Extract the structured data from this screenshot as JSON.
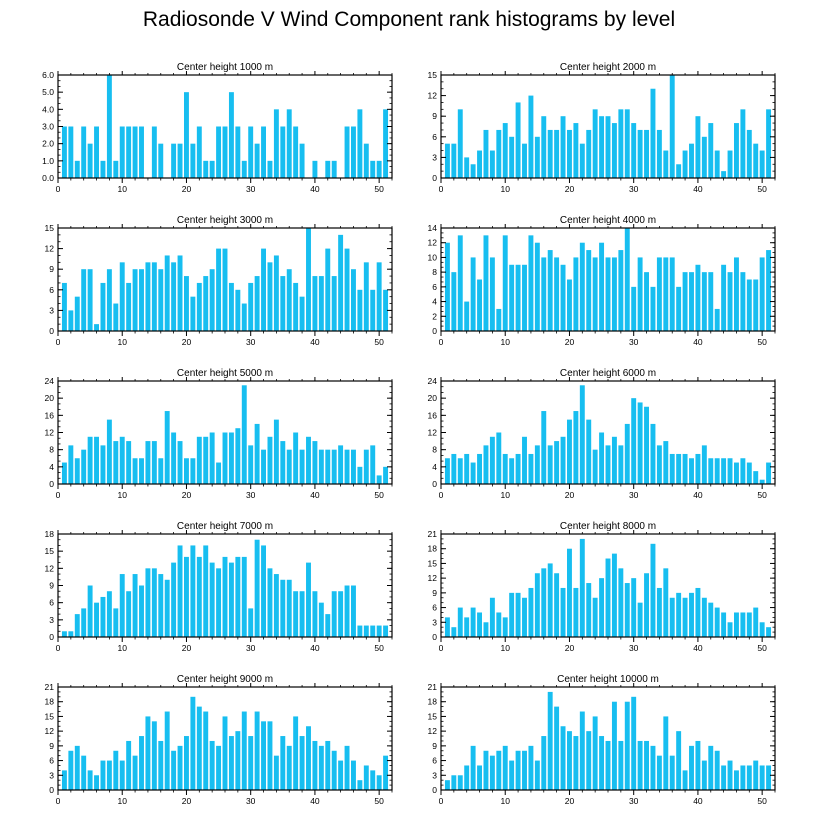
{
  "figure": {
    "title": "Radiosonde V Wind Component rank histograms by level"
  },
  "style": {
    "bar_color": "#17bef0",
    "axis_color": "#000000"
  },
  "chart_data": [
    {
      "type": "bar",
      "title": "Center height 1000 m",
      "xticks": [
        0,
        10,
        20,
        30,
        40,
        50
      ],
      "xlim": [
        0,
        52
      ],
      "ylim": [
        0,
        6
      ],
      "yticks": [
        0,
        1,
        2,
        3,
        4,
        5,
        6
      ],
      "ytick_labels": [
        "0.0",
        "1.0",
        "2.0",
        "3.0",
        "4.0",
        "5.0",
        "6.0"
      ],
      "values": [
        3,
        3,
        1,
        3,
        2,
        3,
        1,
        6,
        1,
        3,
        3,
        3,
        3,
        0,
        3,
        2,
        0,
        2,
        2,
        5,
        2,
        3,
        1,
        1,
        3,
        3,
        5,
        3,
        1,
        3,
        2,
        3,
        1,
        4,
        3,
        4,
        3,
        2,
        0,
        1,
        0,
        1,
        1,
        0,
        3,
        3,
        4,
        2,
        1,
        1,
        4
      ]
    },
    {
      "type": "bar",
      "title": "Center height 2000 m",
      "xticks": [
        0,
        10,
        20,
        30,
        40,
        50
      ],
      "xlim": [
        0,
        52
      ],
      "ylim": [
        0,
        15
      ],
      "yticks": [
        0,
        3,
        6,
        9,
        12,
        15
      ],
      "ytick_labels": [
        "0",
        "3",
        "6",
        "9",
        "12",
        "15"
      ],
      "values": [
        5,
        5,
        10,
        3,
        2,
        4,
        7,
        4,
        7,
        8,
        6,
        11,
        5,
        12,
        6,
        9,
        7,
        7,
        9,
        7,
        8,
        5,
        7,
        10,
        9,
        9,
        8,
        10,
        10,
        8,
        7,
        7,
        13,
        7,
        4,
        15,
        2,
        4,
        5,
        9,
        6,
        8,
        4,
        1,
        4,
        8,
        10,
        7,
        5,
        4,
        10
      ]
    },
    {
      "type": "bar",
      "title": "Center height 3000 m",
      "xticks": [
        0,
        10,
        20,
        30,
        40,
        50
      ],
      "xlim": [
        0,
        52
      ],
      "ylim": [
        0,
        15
      ],
      "yticks": [
        0,
        3,
        6,
        9,
        12,
        15
      ],
      "ytick_labels": [
        "0",
        "3",
        "6",
        "9",
        "12",
        "15"
      ],
      "values": [
        7,
        3,
        5,
        9,
        9,
        1,
        7,
        9,
        4,
        10,
        7,
        9,
        9,
        10,
        10,
        9,
        11,
        10,
        11,
        8,
        5,
        7,
        8,
        9,
        12,
        12,
        7,
        6,
        4,
        7,
        8,
        12,
        10,
        11,
        8,
        9,
        7,
        5,
        15,
        8,
        8,
        12,
        8,
        14,
        12,
        9,
        6,
        10,
        6,
        10,
        6
      ]
    },
    {
      "type": "bar",
      "title": "Center height 4000 m",
      "xticks": [
        0,
        10,
        20,
        30,
        40,
        50
      ],
      "xlim": [
        0,
        52
      ],
      "ylim": [
        0,
        14
      ],
      "yticks": [
        0,
        2,
        4,
        6,
        8,
        10,
        12,
        14
      ],
      "ytick_labels": [
        "0",
        "2",
        "4",
        "6",
        "8",
        "10",
        "12",
        "14"
      ],
      "values": [
        12,
        8,
        13,
        4,
        10,
        7,
        13,
        10,
        3,
        13,
        9,
        9,
        9,
        13,
        12,
        10,
        11,
        10,
        9,
        7,
        10,
        12,
        11,
        10,
        12,
        10,
        10,
        11,
        14,
        6,
        10,
        8,
        6,
        10,
        10,
        10,
        6,
        8,
        8,
        9,
        8,
        8,
        3,
        9,
        8,
        10,
        8,
        7,
        7,
        10,
        11
      ]
    },
    {
      "type": "bar",
      "title": "Center height 5000 m",
      "xticks": [
        0,
        10,
        20,
        30,
        40,
        50
      ],
      "xlim": [
        0,
        52
      ],
      "ylim": [
        0,
        24
      ],
      "yticks": [
        0,
        4,
        8,
        12,
        16,
        20,
        24
      ],
      "ytick_labels": [
        "0",
        "4",
        "8",
        "12",
        "16",
        "20",
        "24"
      ],
      "values": [
        5,
        9,
        6,
        8,
        11,
        11,
        9,
        15,
        10,
        11,
        10,
        6,
        6,
        10,
        10,
        6,
        17,
        12,
        10,
        6,
        6,
        11,
        11,
        12,
        5,
        12,
        12,
        13,
        23,
        9,
        14,
        8,
        11,
        15,
        10,
        8,
        12,
        8,
        11,
        10,
        8,
        8,
        8,
        9,
        8,
        8,
        4,
        8,
        9,
        2,
        4
      ]
    },
    {
      "type": "bar",
      "title": "Center height 6000 m",
      "xticks": [
        0,
        10,
        20,
        30,
        40,
        50
      ],
      "xlim": [
        0,
        52
      ],
      "ylim": [
        0,
        24
      ],
      "yticks": [
        0,
        4,
        8,
        12,
        16,
        20,
        24
      ],
      "ytick_labels": [
        "0",
        "4",
        "8",
        "12",
        "16",
        "20",
        "24"
      ],
      "values": [
        6,
        7,
        6,
        7,
        5,
        7,
        9,
        11,
        12,
        7,
        6,
        7,
        11,
        7,
        9,
        17,
        9,
        10,
        11,
        15,
        17,
        23,
        15,
        8,
        12,
        9,
        11,
        9,
        14,
        20,
        19,
        18,
        14,
        9,
        10,
        7,
        7,
        7,
        6,
        7,
        9,
        6,
        6,
        6,
        6,
        5,
        6,
        5,
        3,
        1,
        5
      ]
    },
    {
      "type": "bar",
      "title": "Center height 7000 m",
      "xticks": [
        0,
        10,
        20,
        30,
        40,
        50
      ],
      "xlim": [
        0,
        52
      ],
      "ylim": [
        0,
        18
      ],
      "yticks": [
        0,
        3,
        6,
        9,
        12,
        15,
        18
      ],
      "ytick_labels": [
        "0",
        "3",
        "6",
        "9",
        "12",
        "15",
        "18"
      ],
      "values": [
        1,
        1,
        4,
        5,
        9,
        6,
        7,
        8,
        5,
        11,
        8,
        11,
        9,
        12,
        12,
        11,
        10,
        13,
        16,
        14,
        16,
        14,
        16,
        13,
        12,
        14,
        13,
        14,
        14,
        5,
        17,
        16,
        12,
        11,
        10,
        10,
        8,
        8,
        13,
        8,
        6,
        4,
        8,
        8,
        9,
        9,
        2,
        2,
        2,
        2,
        2
      ]
    },
    {
      "type": "bar",
      "title": "Center height 8000 m",
      "xticks": [
        0,
        10,
        20,
        30,
        40,
        50
      ],
      "xlim": [
        0,
        52
      ],
      "ylim": [
        0,
        21
      ],
      "yticks": [
        0,
        3,
        6,
        9,
        12,
        15,
        18,
        21
      ],
      "ytick_labels": [
        "0",
        "3",
        "6",
        "9",
        "12",
        "15",
        "18",
        "21"
      ],
      "values": [
        4,
        2,
        6,
        4,
        6,
        5,
        3,
        8,
        5,
        4,
        9,
        9,
        8,
        10,
        13,
        14,
        15,
        13,
        10,
        18,
        10,
        20,
        11,
        8,
        12,
        16,
        17,
        14,
        11,
        12,
        7,
        13,
        19,
        10,
        14,
        8,
        9,
        8,
        9,
        10,
        8,
        7,
        6,
        5,
        3,
        5,
        5,
        5,
        6,
        3,
        2
      ]
    },
    {
      "type": "bar",
      "title": "Center height 9000 m",
      "xticks": [
        0,
        10,
        20,
        30,
        40,
        50
      ],
      "xlim": [
        0,
        52
      ],
      "ylim": [
        0,
        21
      ],
      "yticks": [
        0,
        3,
        6,
        9,
        12,
        15,
        18,
        21
      ],
      "ytick_labels": [
        "0",
        "3",
        "6",
        "9",
        "12",
        "15",
        "18",
        "21"
      ],
      "values": [
        4,
        8,
        9,
        7,
        4,
        3,
        6,
        6,
        8,
        6,
        10,
        7,
        11,
        15,
        14,
        10,
        16,
        8,
        9,
        11,
        19,
        17,
        16,
        10,
        9,
        15,
        11,
        12,
        16,
        11,
        16,
        14,
        14,
        7,
        11,
        9,
        15,
        11,
        13,
        10,
        9,
        10,
        8,
        6,
        9,
        6,
        2,
        5,
        4,
        3,
        7
      ]
    },
    {
      "type": "bar",
      "title": "Center height 10000 m",
      "xticks": [
        0,
        10,
        20,
        30,
        40,
        50
      ],
      "xlim": [
        0,
        52
      ],
      "ylim": [
        0,
        21
      ],
      "yticks": [
        0,
        3,
        6,
        9,
        12,
        15,
        18,
        21
      ],
      "ytick_labels": [
        "0",
        "3",
        "6",
        "9",
        "12",
        "15",
        "18",
        "21"
      ],
      "values": [
        2,
        3,
        3,
        5,
        9,
        5,
        8,
        7,
        8,
        9,
        6,
        8,
        8,
        9,
        6,
        11,
        20,
        17,
        13,
        12,
        11,
        16,
        12,
        15,
        11,
        10,
        18,
        10,
        18,
        19,
        10,
        10,
        9,
        7,
        15,
        7,
        12,
        4,
        9,
        10,
        6,
        9,
        8,
        5,
        6,
        4,
        5,
        5,
        6,
        5,
        5
      ]
    }
  ]
}
